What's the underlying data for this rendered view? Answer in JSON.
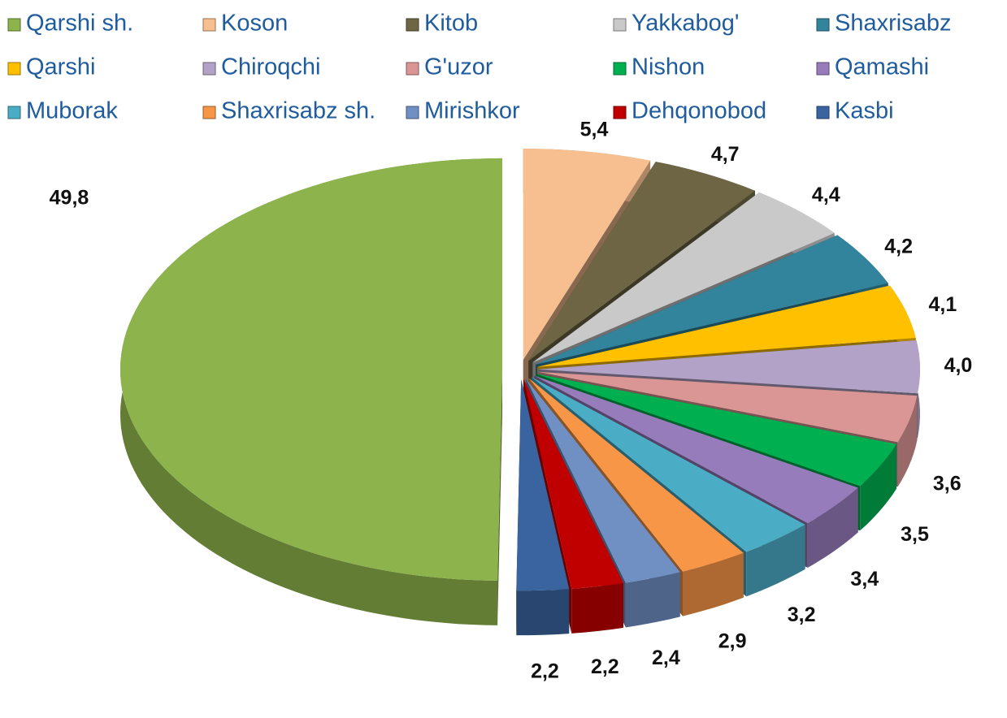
{
  "chart_data": {
    "type": "pie",
    "categories": [
      "Qarshi sh.",
      "Koson",
      "Kitob",
      "Yakkabog'",
      "Shaxrisabz",
      "Qarshi",
      "Chiroqchi",
      "G'uzor",
      "Nishon",
      "Qamashi",
      "Muborak",
      "Shaxrisabz sh.",
      "Mirishkor",
      "Dehqonobod",
      "Kasbi"
    ],
    "values": [
      49.8,
      5.4,
      4.7,
      4.4,
      4.2,
      4.1,
      4.0,
      3.6,
      3.5,
      3.4,
      3.2,
      2.9,
      2.4,
      2.2,
      2.2
    ],
    "value_labels": [
      "49,8",
      "5,4",
      "4,7",
      "4,4",
      "4,2",
      "4,1",
      "4,0",
      "3,6",
      "3,5",
      "3,4",
      "3,2",
      "2,9",
      "2,4",
      "2,2",
      "2,2"
    ],
    "colors": [
      "#8db34c",
      "#f7bf90",
      "#6d6543",
      "#c9c9c9",
      "#31849b",
      "#ffc000",
      "#b3a2c7",
      "#d99694",
      "#00b050",
      "#977cbb",
      "#4bacc6",
      "#f79646",
      "#7090c4",
      "#c00000",
      "#3a64a0"
    ],
    "legend": "top"
  }
}
